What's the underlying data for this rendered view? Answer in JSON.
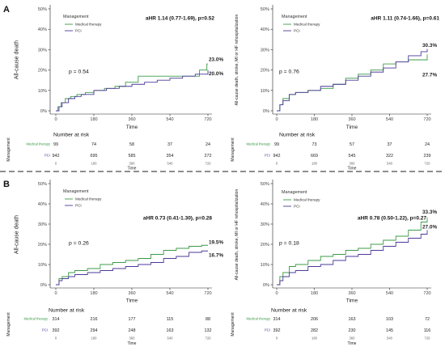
{
  "panels": [
    {
      "letter": "A"
    },
    {
      "letter": "B"
    }
  ],
  "chart_data": [
    {
      "type": "line",
      "step": true,
      "ylabel": "All-cause death",
      "xlabel": "Time",
      "xlim": [
        0,
        720
      ],
      "ylim": [
        0,
        50
      ],
      "xticks": [
        0,
        180,
        360,
        540,
        720
      ],
      "xtick_labels": [
        "0",
        "180",
        "360",
        "540",
        "720"
      ],
      "yticks": [
        0,
        10,
        20,
        30,
        40,
        50
      ],
      "ytick_labels": [
        "0%",
        "10%",
        "20%",
        "30%",
        "40%",
        "50%"
      ],
      "legend_title": "Management",
      "legend_position": "top-left",
      "annotation": "aHR 1.14 (0.77-1.69), p=0.52",
      "p_value": "p = 0.54",
      "series": [
        {
          "name": "Medical therapy",
          "color": "#3c9b48",
          "x": [
            0,
            10,
            25,
            45,
            70,
            100,
            140,
            180,
            230,
            280,
            330,
            390,
            460,
            540,
            620,
            680,
            715,
            720
          ],
          "values": [
            0,
            2,
            4,
            6,
            7,
            8,
            9,
            10,
            11,
            12,
            14,
            17,
            17,
            17,
            17,
            20,
            23,
            23
          ],
          "end_label": "23.0%"
        },
        {
          "name": "PCI",
          "color": "#4b3a9a",
          "x": [
            0,
            15,
            30,
            60,
            90,
            120,
            180,
            240,
            300,
            360,
            420,
            480,
            540,
            600,
            660,
            720
          ],
          "values": [
            0,
            2,
            4,
            6,
            7,
            8,
            10,
            11,
            12,
            13,
            14,
            15,
            16,
            17,
            18,
            20
          ],
          "end_label": "20.0%"
        }
      ],
      "risk_table": {
        "title": "Number at risk",
        "group_label": "Management",
        "xlabel": "Time",
        "rows": [
          {
            "name": "Medical therapy",
            "values": [
              99,
              74,
              58,
              37,
              24
            ]
          },
          {
            "name": "PCI",
            "values": [
              942,
              695,
              585,
              354,
              272
            ]
          }
        ]
      }
    },
    {
      "type": "line",
      "step": true,
      "ylabel": "All-cause death, stroke, MI or HF rehospitalization",
      "xlabel": "Time",
      "xlim": [
        0,
        720
      ],
      "ylim": [
        0,
        50
      ],
      "xticks": [
        0,
        180,
        360,
        540,
        720
      ],
      "xtick_labels": [
        "0",
        "180",
        "360",
        "540",
        "720"
      ],
      "yticks": [
        0,
        10,
        20,
        30,
        40,
        50
      ],
      "ytick_labels": [
        "0%",
        "10%",
        "20%",
        "30%",
        "40%",
        "50%"
      ],
      "legend_title": "Management",
      "legend_position": "top-left",
      "annotation": "aHR 1.11 (0.74-1.66), p=0.61",
      "p_value": "p = 0.76",
      "series": [
        {
          "name": "Medical therapy",
          "color": "#3c9b48",
          "x": [
            0,
            15,
            30,
            60,
            90,
            150,
            210,
            270,
            330,
            390,
            450,
            510,
            570,
            630,
            690,
            720
          ],
          "values": [
            0,
            3,
            6,
            8,
            9,
            10,
            11,
            13,
            16,
            18,
            20,
            23,
            24,
            25,
            25,
            27.7
          ],
          "end_label": "27.7%"
        },
        {
          "name": "PCI",
          "color": "#4b3a9a",
          "x": [
            0,
            15,
            30,
            60,
            90,
            150,
            210,
            270,
            330,
            390,
            450,
            510,
            570,
            630,
            690,
            720
          ],
          "values": [
            0,
            3,
            5,
            8,
            9,
            10,
            12,
            13,
            15,
            17,
            19,
            21,
            24,
            27,
            29,
            30.3
          ],
          "end_label": "30.3%"
        }
      ],
      "risk_table": {
        "title": "Number at risk",
        "group_label": "Management",
        "xlabel": "Time",
        "rows": [
          {
            "name": "Medical therapy",
            "values": [
              99,
              73,
              57,
              37,
              24
            ]
          },
          {
            "name": "PCI",
            "values": [
              942,
              669,
              545,
              322,
              239
            ]
          }
        ]
      }
    },
    {
      "type": "line",
      "step": true,
      "ylabel": "All-cause death",
      "xlabel": "Time",
      "xlim": [
        0,
        720
      ],
      "ylim": [
        0,
        50
      ],
      "xticks": [
        0,
        180,
        360,
        540,
        720
      ],
      "xtick_labels": [
        "0",
        "180",
        "360",
        "540",
        "720"
      ],
      "yticks": [
        0,
        10,
        20,
        30,
        40,
        50
      ],
      "ytick_labels": [
        "0%",
        "10%",
        "20%",
        "30%",
        "40%",
        "50%"
      ],
      "legend_title": "Management",
      "legend_position": "top-left",
      "annotation": "aHR 0.73 (0.41-1.30), p=0.28",
      "p_value": "p = 0.26",
      "series": [
        {
          "name": "Medical therapy",
          "color": "#3c9b48",
          "x": [
            0,
            15,
            30,
            60,
            90,
            150,
            210,
            270,
            330,
            390,
            450,
            510,
            570,
            630,
            690,
            720
          ],
          "values": [
            0,
            3,
            4,
            6,
            7,
            8,
            10,
            11,
            12,
            13,
            15,
            17,
            18,
            19,
            19.5,
            19.5
          ],
          "end_label": "19.5%"
        },
        {
          "name": "PCI",
          "color": "#4b3a9a",
          "x": [
            0,
            15,
            30,
            60,
            90,
            150,
            210,
            270,
            330,
            390,
            450,
            510,
            570,
            630,
            690,
            720
          ],
          "values": [
            0,
            2,
            3,
            4,
            5,
            6,
            7,
            8,
            9,
            10,
            11,
            13,
            14,
            16,
            16.7,
            16.7
          ],
          "end_label": "16.7%"
        }
      ],
      "risk_table": {
        "title": "Number at risk",
        "group_label": "Management",
        "xlabel": "Time",
        "rows": [
          {
            "name": "Medical therapy",
            "values": [
              314,
              216,
              177,
              115,
              88
            ]
          },
          {
            "name": "PCI",
            "values": [
              392,
              294,
              248,
              163,
              132
            ]
          }
        ]
      }
    },
    {
      "type": "line",
      "step": true,
      "ylabel": "All-cause death, stroke, MI or HF rehospitalization",
      "xlabel": "Time",
      "xlim": [
        0,
        720
      ],
      "ylim": [
        0,
        50
      ],
      "xticks": [
        0,
        180,
        360,
        540,
        720
      ],
      "xtick_labels": [
        "0",
        "180",
        "360",
        "540",
        "720"
      ],
      "yticks": [
        0,
        10,
        20,
        30,
        40,
        50
      ],
      "ytick_labels": [
        "0%",
        "10%",
        "20%",
        "30%",
        "40%",
        "50%"
      ],
      "legend_title": "Management",
      "legend_position": "top-left",
      "annotation": "aHR 0.78 (0.50-1.22), p=0.27",
      "p_value": "p = 0.18",
      "series": [
        {
          "name": "Medical therapy",
          "color": "#3c9b48",
          "x": [
            0,
            15,
            30,
            60,
            90,
            150,
            210,
            270,
            330,
            390,
            450,
            510,
            570,
            630,
            690,
            720
          ],
          "values": [
            0,
            4,
            6,
            9,
            10,
            12,
            14,
            15,
            17,
            18,
            20,
            22,
            24,
            27,
            31,
            33.3
          ],
          "end_label": "33.3%"
        },
        {
          "name": "PCI",
          "color": "#4b3a9a",
          "x": [
            0,
            15,
            30,
            60,
            90,
            150,
            210,
            270,
            330,
            390,
            450,
            510,
            570,
            630,
            690,
            720
          ],
          "values": [
            0,
            2,
            4,
            6,
            7,
            9,
            10,
            12,
            14,
            15,
            17,
            19,
            21,
            23,
            25,
            27.0
          ],
          "end_label": "27.0%"
        }
      ],
      "risk_table": {
        "title": "Number at risk",
        "group_label": "Management",
        "xlabel": "Time",
        "rows": [
          {
            "name": "Medical therapy",
            "values": [
              314,
              206,
              163,
              103,
              72
            ]
          },
          {
            "name": "PCI",
            "values": [
              392,
              282,
              230,
              145,
              116
            ]
          }
        ]
      }
    }
  ]
}
